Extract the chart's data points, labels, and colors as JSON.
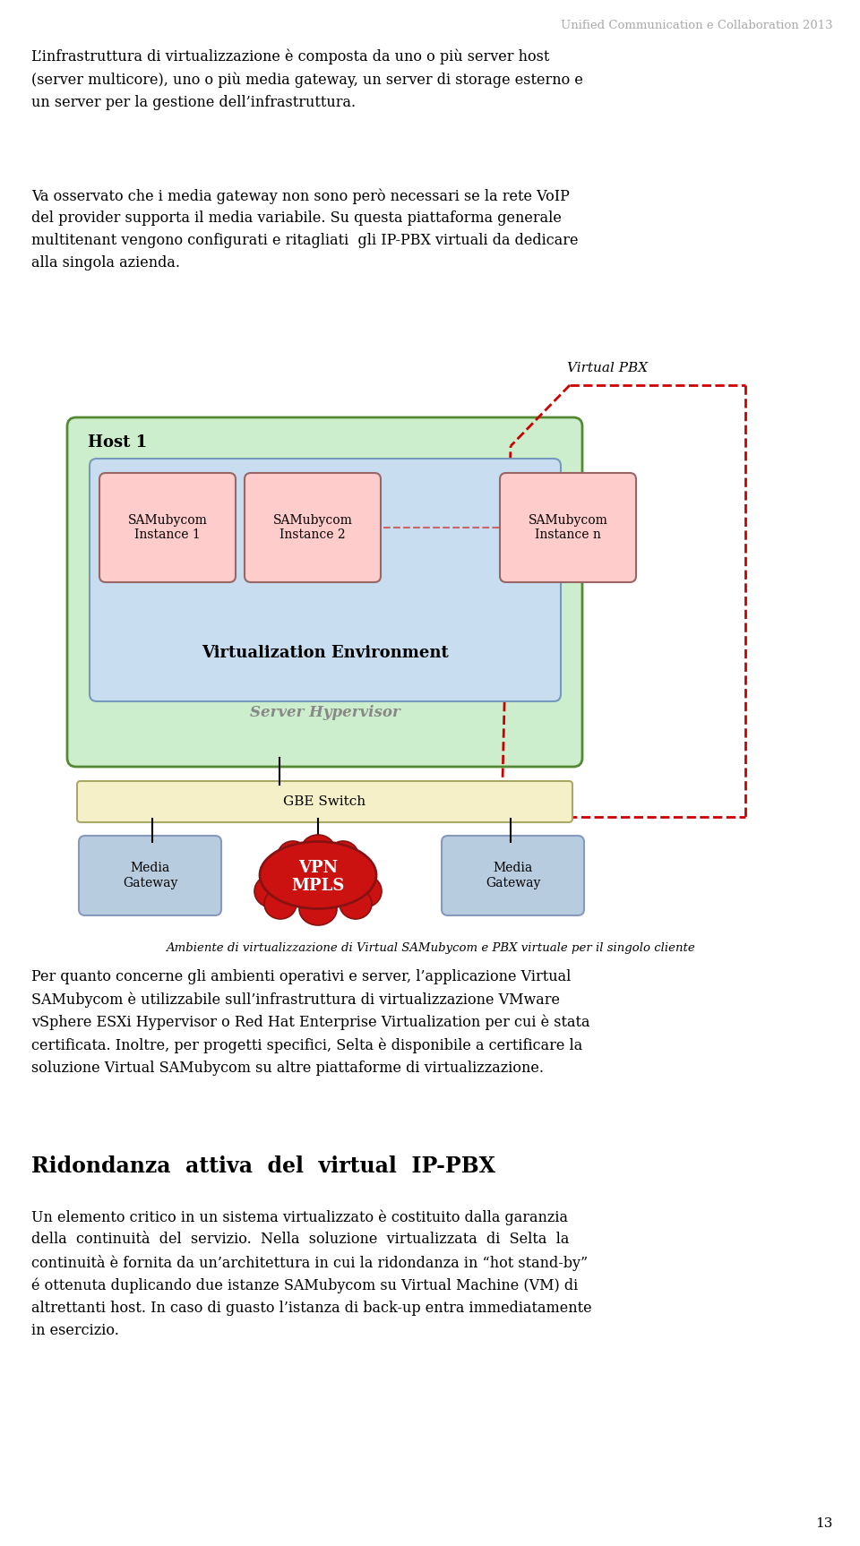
{
  "header": "Unified Communication e Collaboration 2013",
  "para1": "L’infrastruttura di virtualizzazione è composta da uno o più server host\n(server multicore), uno o più media gateway, un server di storage esterno e\nun server per la gestione dell’infrastruttura.",
  "para2": "Va osservato che i media gateway non sono però necessari se la rete VoIP\ndel provider supporta il media variabile. Su questa piattaforma generale\nmultitenant vengono configurati e ritagliati  gli IP-PBX virtuali da dedicare\nalla singola azienda.",
  "caption": "Ambiente di virtualizzazione di Virtual SAMubycom e PBX virtuale per il singolo cliente",
  "para3": "Per quanto concerne gli ambienti operativi e server, l’applicazione Virtual\nSAMubycom è utilizzabile sull’infrastruttura di virtualizzazione VMware\nvSphere ESXi Hypervisor o Red Hat Enterprise Virtualization per cui è stata\ncertificata. Inoltre, per progetti specifici, Selta è disponibile a certificare la\nsoluzione Virtual SAMubycom su altre piattaforme di virtualizzazione.",
  "heading2": "Ridondanza  attiva  del  virtual  IP-PBX",
  "para4": "Un elemento critico in un sistema virtualizzato è costituito dalla garanzia\ndella  continuità  del  servizio.  Nella  soluzione  virtualizzata  di  Selta  la\ncontinuità è fornita da un’architettura in cui la ridondanza in “hot stand-by”\né ottenuta duplicando due istanze SAMubycom su Virtual Machine (VM) di\naltrettanti host. In caso di guasto l’istanza di back-up entra immediatamente\nin esercizio.",
  "page_num": "13",
  "bg_color": "#ffffff",
  "header_color": "#aaaaaa",
  "text_color": "#000000"
}
